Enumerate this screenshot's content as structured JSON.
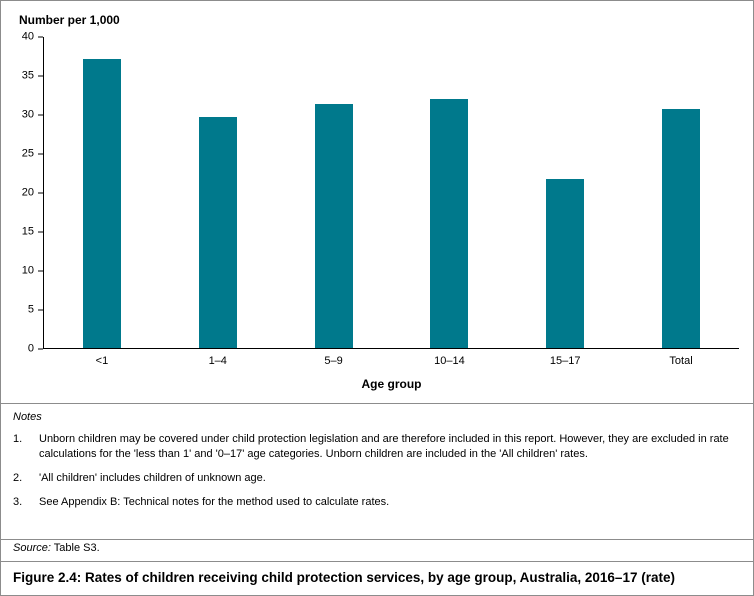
{
  "chart_data": {
    "type": "bar",
    "title": "",
    "ylabel": "Number per 1,000",
    "xlabel": "Age group",
    "categories": [
      "<1",
      "1–4",
      "5–9",
      "10–14",
      "15–17",
      "Total"
    ],
    "values": [
      37.2,
      29.7,
      31.4,
      32.0,
      21.8,
      30.8
    ],
    "ylim": [
      0,
      40
    ],
    "yticks": [
      0,
      5,
      10,
      15,
      20,
      25,
      30,
      35,
      40
    ],
    "grid": false,
    "legend": "none",
    "bar_color": "#00798c"
  },
  "notes": {
    "heading": "Notes",
    "items": [
      {
        "num": "1.",
        "text": "Unborn children may be covered under child protection legislation and are therefore included in this report. However, they are excluded in rate calculations for the 'less than 1' and '0–17' age categories. Unborn children are included in the 'All children' rates."
      },
      {
        "num": "2.",
        "text": "'All children' includes children of unknown age."
      },
      {
        "num": "3.",
        "text": "See Appendix B: Technical notes for the method used to calculate rates."
      }
    ]
  },
  "source": {
    "label": "Source:",
    "text": "Table S3."
  },
  "caption": {
    "text": "Figure 2.4: Rates of children receiving child protection services, by age group, Australia, 2016–17 (rate)"
  }
}
